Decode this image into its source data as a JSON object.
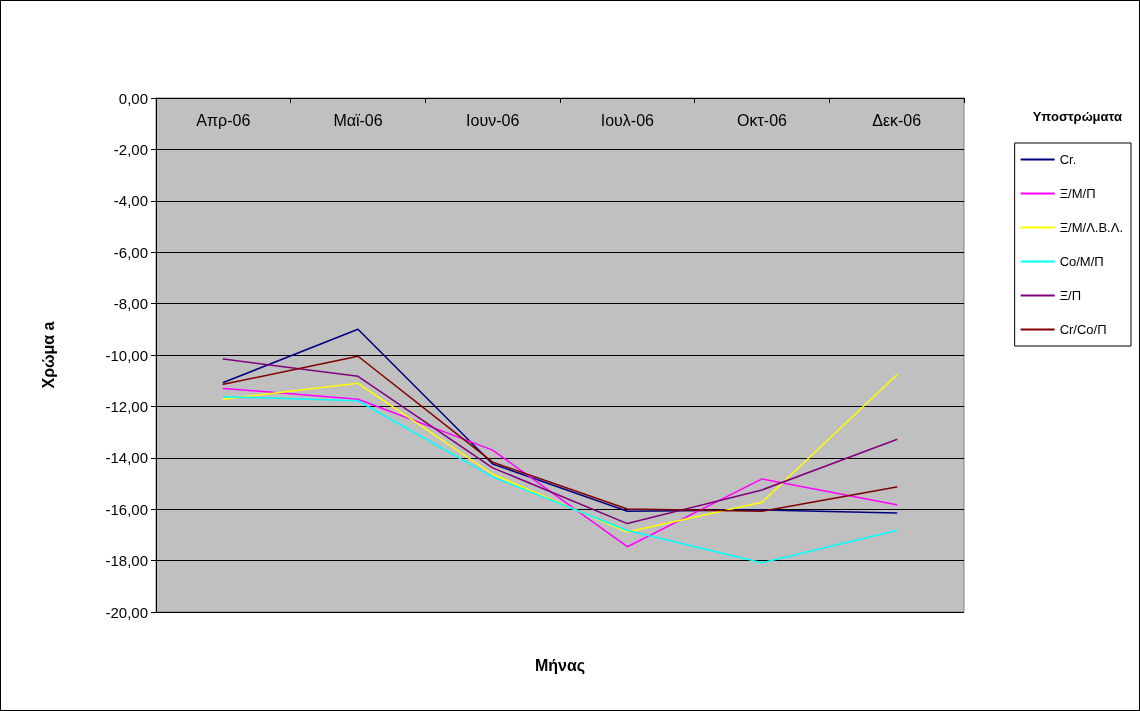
{
  "chart_data": {
    "type": "line",
    "xlabel": "Μήνας",
    "ylabel": "Χρώμα a",
    "legend_title": "Υποστρώματα",
    "categories": [
      "Απρ-06",
      "Μαϊ-06",
      "Ιουν-06",
      "Ιουλ-06",
      "Οκτ-06",
      "Δεκ-06"
    ],
    "series": [
      {
        "name": "Cr.",
        "color": "#000080",
        "values": [
          -11.07,
          -9.0,
          -14.24,
          -16.08,
          -16.03,
          -16.15
        ]
      },
      {
        "name": "Ξ/Μ/Π",
        "color": "#ff00ff",
        "values": [
          -11.3,
          -11.72,
          -13.7,
          -17.46,
          -14.82,
          -15.83
        ]
      },
      {
        "name": "Ξ/Μ/Λ.Β.Λ.",
        "color": "#ffff00",
        "values": [
          -11.72,
          -11.1,
          -14.64,
          -16.89,
          -15.73,
          -10.78
        ]
      },
      {
        "name": "Co/Μ/Π",
        "color": "#00ffff",
        "values": [
          -11.62,
          -11.78,
          -14.74,
          -16.83,
          -18.08,
          -16.83
        ]
      },
      {
        "name": "Ξ/Π",
        "color": "#800080",
        "values": [
          -10.16,
          -10.83,
          -14.39,
          -16.56,
          -15.25,
          -13.29
        ]
      },
      {
        "name": "Cr/Co/Π",
        "color": "#800000",
        "values": [
          -11.14,
          -10.05,
          -14.17,
          -15.99,
          -16.08,
          -15.14
        ]
      }
    ],
    "ylim": [
      -20,
      0
    ],
    "yticks": [
      {
        "value": -20,
        "label": "-20,00"
      },
      {
        "value": -18,
        "label": "-18,00"
      },
      {
        "value": -16,
        "label": "-16,00"
      },
      {
        "value": -14,
        "label": "-14,00"
      },
      {
        "value": -12,
        "label": "-12,00"
      },
      {
        "value": -10,
        "label": "-10,00"
      },
      {
        "value": -8,
        "label": "-8,00"
      },
      {
        "value": -6,
        "label": "-6,00"
      },
      {
        "value": -4,
        "label": "-4,00"
      },
      {
        "value": -2,
        "label": "-2,00"
      },
      {
        "value": 0,
        "label": "0,00"
      }
    ],
    "grid": "y",
    "legend": "right",
    "marker": "none",
    "line_style": "solid"
  }
}
